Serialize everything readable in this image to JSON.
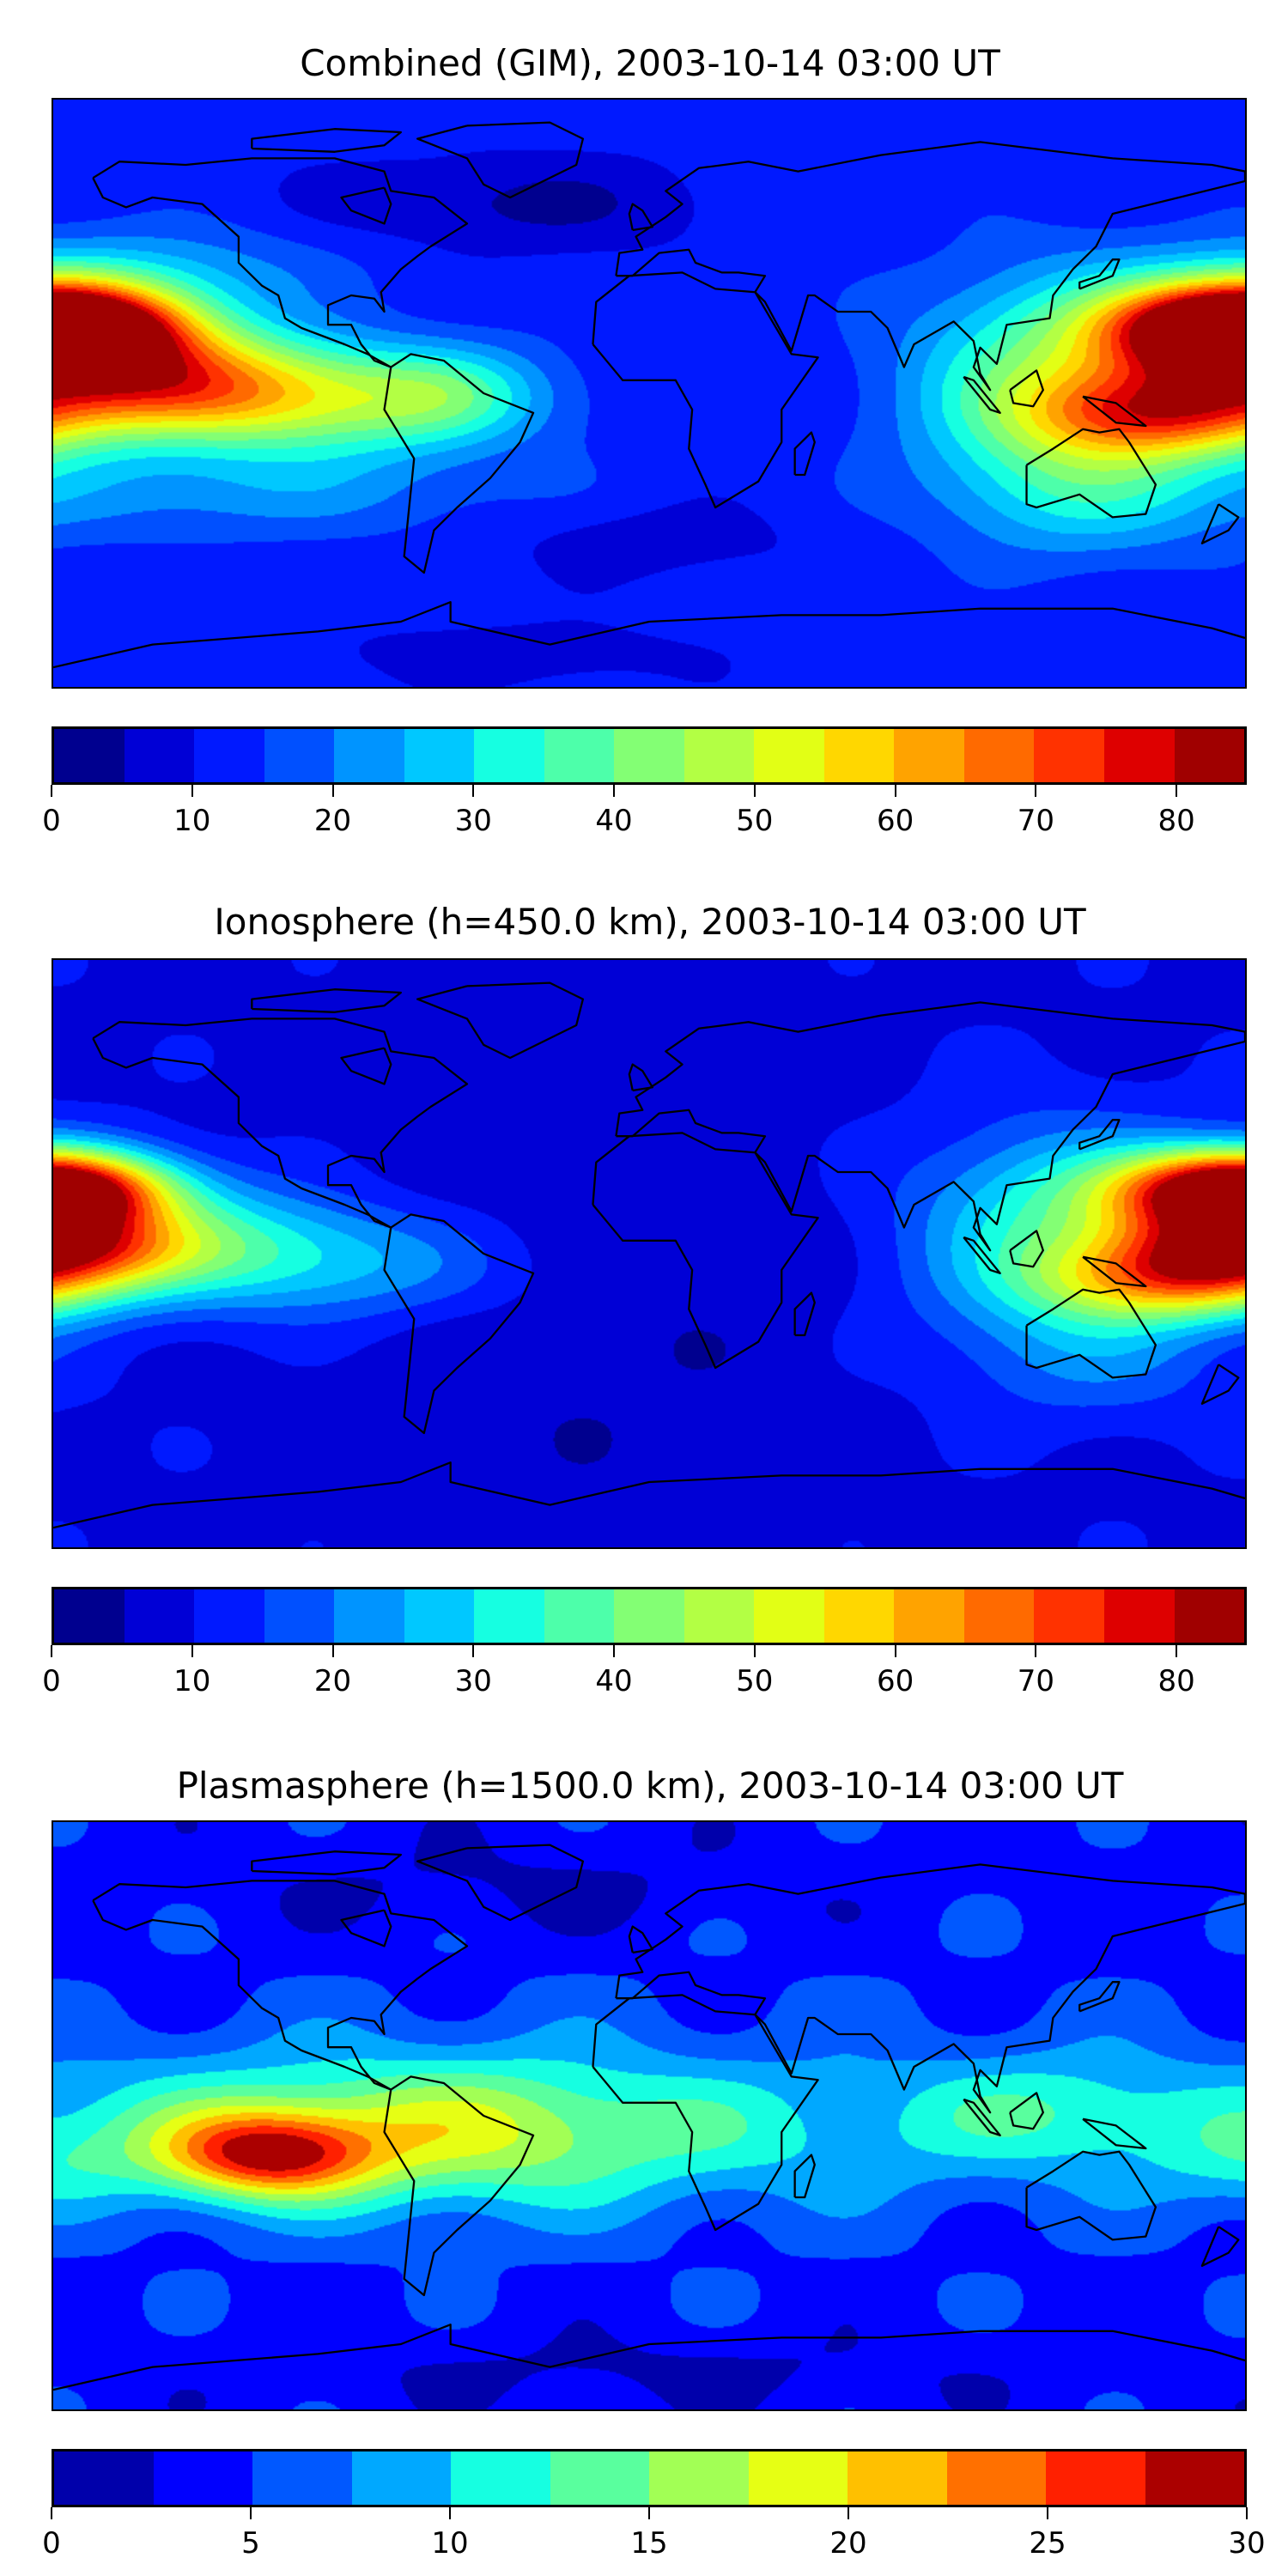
{
  "chart_data": [
    {
      "type": "heatmap",
      "title": "Combined (GIM), 2003-10-14 03:00 UT",
      "projection": "plate-carree",
      "lon_range": [
        -180,
        180
      ],
      "lat_range": [
        -90,
        90
      ],
      "colorbar": {
        "min": 0,
        "max": 85,
        "step": 5,
        "ticks": [
          0,
          10,
          20,
          30,
          40,
          50,
          60,
          70,
          80
        ],
        "colors": [
          "#00008f",
          "#0000d6",
          "#0019ff",
          "#0050ff",
          "#0094ff",
          "#00c8ff",
          "#16ffe1",
          "#4dffaa",
          "#83ff74",
          "#b3ff44",
          "#e2ff15",
          "#ffd700",
          "#ffa300",
          "#ff6a00",
          "#ff3200",
          "#de0000",
          "#a00000"
        ]
      },
      "field_base": 12,
      "field_components": [
        {
          "lon": -180,
          "lat": 20,
          "amp": 58,
          "sx": 25,
          "sy": 9
        },
        {
          "lon": -150,
          "lat": 4,
          "amp": 38,
          "sx": 35,
          "sy": 11
        },
        {
          "lon": -105,
          "lat": -3,
          "amp": 30,
          "sx": 40,
          "sy": 12
        },
        {
          "lon": -60,
          "lat": 0,
          "amp": 14,
          "sx": 20,
          "sy": 10
        },
        {
          "lon": 180,
          "lat": 20,
          "amp": 52,
          "sx": 30,
          "sy": 11
        },
        {
          "lon": 155,
          "lat": -6,
          "amp": 45,
          "sx": 28,
          "sy": 10
        },
        {
          "lon": 120,
          "lat": 5,
          "amp": 25,
          "sx": 30,
          "sy": 22
        },
        {
          "lon": -150,
          "lat": 38,
          "amp": 10,
          "sx": 40,
          "sy": 10
        },
        {
          "lon": -130,
          "lat": -30,
          "amp": 10,
          "sx": 60,
          "sy": 10
        },
        {
          "lon": 130,
          "lat": -30,
          "amp": 14,
          "sx": 30,
          "sy": 15
        },
        {
          "lon": -40,
          "lat": 58,
          "amp": -8,
          "sx": 40,
          "sy": 10
        },
        {
          "lon": 0,
          "lat": -45,
          "amp": -5,
          "sx": 30,
          "sy": 8
        },
        {
          "lon": -40,
          "lat": -80,
          "amp": -6,
          "sx": 35,
          "sy": 6
        }
      ]
    },
    {
      "type": "heatmap",
      "title": "Ionosphere  (h=450.0 km), 2003-10-14 03:00 UT",
      "projection": "plate-carree",
      "lon_range": [
        -180,
        180
      ],
      "lat_range": [
        -90,
        90
      ],
      "colorbar": {
        "min": 0,
        "max": 85,
        "step": 5,
        "ticks": [
          0,
          10,
          20,
          30,
          40,
          50,
          60,
          70,
          80
        ],
        "colors": [
          "#00008f",
          "#0000d6",
          "#0019ff",
          "#0050ff",
          "#0094ff",
          "#00c8ff",
          "#16ffe1",
          "#4dffaa",
          "#83ff74",
          "#b3ff44",
          "#e2ff15",
          "#ffd700",
          "#ffa300",
          "#ff6a00",
          "#ff3200",
          "#de0000",
          "#a00000"
        ]
      },
      "field_base": 9,
      "field_components": [
        {
          "lon": -180,
          "lat": 20,
          "amp": 45,
          "sx": 22,
          "sy": 8
        },
        {
          "lon": -180,
          "lat": 2,
          "amp": 38,
          "sx": 25,
          "sy": 8
        },
        {
          "lon": -140,
          "lat": 3,
          "amp": 22,
          "sx": 40,
          "sy": 12
        },
        {
          "lon": -90,
          "lat": -5,
          "amp": 12,
          "sx": 40,
          "sy": 12
        },
        {
          "lon": 175,
          "lat": 18,
          "amp": 48,
          "sx": 28,
          "sy": 10
        },
        {
          "lon": 160,
          "lat": -8,
          "amp": 42,
          "sx": 28,
          "sy": 9
        },
        {
          "lon": 120,
          "lat": 8,
          "amp": 22,
          "sx": 30,
          "sy": 22
        },
        {
          "lon": 135,
          "lat": -30,
          "amp": 10,
          "sx": 30,
          "sy": 15
        },
        {
          "lon": -20,
          "lat": -10,
          "amp": -4,
          "sx": 50,
          "sy": 60
        }
      ]
    },
    {
      "type": "heatmap",
      "title": "Plasmasphere (h=1500.0 km), 2003-10-14 03:00 UT",
      "projection": "plate-carree",
      "lon_range": [
        -180,
        180
      ],
      "lat_range": [
        -90,
        90
      ],
      "colorbar": {
        "min": 0,
        "max": 30,
        "step": 2.5,
        "ticks": [
          0,
          5,
          10,
          15,
          20,
          25,
          30
        ],
        "colors": [
          "#0000ab",
          "#0000ff",
          "#0058ff",
          "#00a8ff",
          "#16ffe1",
          "#59ff9e",
          "#a2ff55",
          "#e6ff14",
          "#ffc000",
          "#ff7000",
          "#ff2000",
          "#ab0000"
        ]
      },
      "field_base": 4,
      "field_components": [
        {
          "lon": -115,
          "lat": -12,
          "amp": 17,
          "sx": 22,
          "sy": 9
        },
        {
          "lon": -110,
          "lat": -5,
          "amp": 8,
          "sx": 60,
          "sy": 16
        },
        {
          "lon": -45,
          "lat": -5,
          "amp": 6,
          "sx": 40,
          "sy": 16
        },
        {
          "lon": 40,
          "lat": -5,
          "amp": 4,
          "sx": 60,
          "sy": 15
        },
        {
          "lon": 125,
          "lat": 2,
          "amp": 5,
          "sx": 30,
          "sy": 12
        },
        {
          "lon": -180,
          "lat": -15,
          "amp": 3,
          "sx": 20,
          "sy": 10
        },
        {
          "lon": 0,
          "lat": 0,
          "amp": 2,
          "sx": 180,
          "sy": 30
        },
        {
          "lon": -40,
          "lat": 70,
          "amp": -2,
          "sx": 60,
          "sy": 10
        },
        {
          "lon": 0,
          "lat": -78,
          "amp": -2,
          "sx": 80,
          "sy": 8
        }
      ]
    }
  ]
}
